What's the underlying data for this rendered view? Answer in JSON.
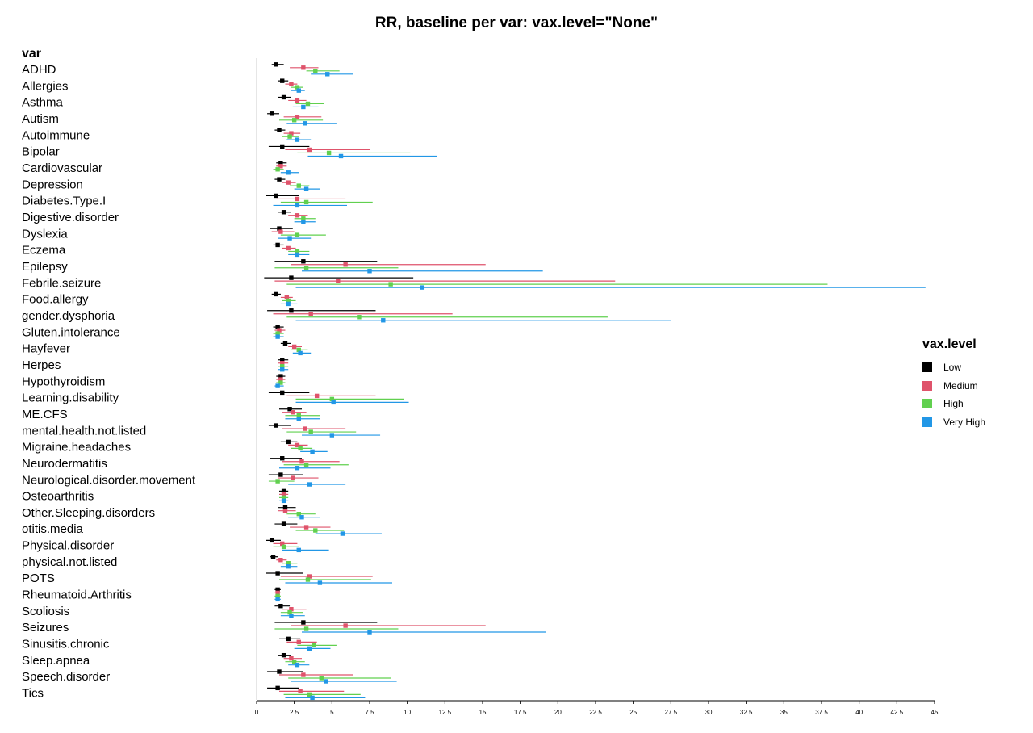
{
  "chart_data": {
    "type": "forest",
    "title": "RR, baseline per var: vax.level=\"None\"",
    "row_header": "var",
    "xlim": [
      0,
      45
    ],
    "xticks": [
      "0",
      "2.5",
      "5",
      "7.5",
      "10",
      "12.5",
      "15",
      "17.5",
      "20",
      "22.5",
      "25",
      "27.5",
      "30",
      "32.5",
      "35",
      "37.5",
      "40",
      "42.5",
      "45"
    ],
    "legend": {
      "title": "vax.level",
      "position": "right",
      "entries": [
        {
          "label": "Low",
          "color": "#000000"
        },
        {
          "label": "Medium",
          "color": "#DF536B"
        },
        {
          "label": "High",
          "color": "#61D04F"
        },
        {
          "label": "Very High",
          "color": "#2297E6"
        }
      ]
    },
    "series_order": [
      "Low",
      "Medium",
      "High",
      "Very High"
    ],
    "rows": [
      {
        "var": "ADHD",
        "Low": [
          1.3,
          1.0,
          1.8
        ],
        "Medium": [
          3.1,
          2.2,
          4.1
        ],
        "High": [
          3.9,
          3.3,
          5.5
        ],
        "Very High": [
          4.7,
          3.6,
          6.4
        ]
      },
      {
        "var": "Allergies",
        "Low": [
          1.7,
          1.4,
          2.1
        ],
        "Medium": [
          2.3,
          1.9,
          2.7
        ],
        "High": [
          2.7,
          2.3,
          3.1
        ],
        "Very High": [
          2.8,
          2.3,
          3.2
        ]
      },
      {
        "var": "Asthma",
        "Low": [
          1.8,
          1.4,
          2.3
        ],
        "Medium": [
          2.7,
          2.1,
          3.3
        ],
        "High": [
          3.4,
          2.6,
          4.5
        ],
        "Very High": [
          3.1,
          2.4,
          4.1
        ]
      },
      {
        "var": "Autism",
        "Low": [
          1.0,
          0.7,
          1.5
        ],
        "Medium": [
          2.7,
          1.8,
          4.3
        ],
        "High": [
          2.5,
          1.5,
          4.4
        ],
        "Very High": [
          3.2,
          2.0,
          5.3
        ]
      },
      {
        "var": "Autoimmune",
        "Low": [
          1.5,
          1.2,
          1.9
        ],
        "Medium": [
          2.3,
          1.8,
          2.9
        ],
        "High": [
          2.2,
          1.7,
          2.8
        ],
        "Very High": [
          2.7,
          2.0,
          3.6
        ]
      },
      {
        "var": "Bipolar",
        "Low": [
          1.7,
          0.8,
          3.5
        ],
        "Medium": [
          3.5,
          1.9,
          7.5
        ],
        "High": [
          4.8,
          2.7,
          10.2
        ],
        "Very High": [
          5.6,
          3.4,
          12.0
        ]
      },
      {
        "var": "Cardiovascular",
        "Low": [
          1.6,
          1.3,
          2.0
        ],
        "Medium": [
          1.6,
          1.3,
          2.0
        ],
        "High": [
          1.4,
          1.1,
          1.8
        ],
        "Very High": [
          2.1,
          1.6,
          2.8
        ]
      },
      {
        "var": "Depression",
        "Low": [
          1.5,
          1.2,
          1.9
        ],
        "Medium": [
          2.1,
          1.7,
          2.6
        ],
        "High": [
          2.8,
          2.2,
          3.5
        ],
        "Very High": [
          3.3,
          2.5,
          4.2
        ]
      },
      {
        "var": "Diabetes.Type.I",
        "Low": [
          1.3,
          0.6,
          2.8
        ],
        "Medium": [
          2.7,
          1.3,
          5.9
        ],
        "High": [
          3.3,
          1.6,
          7.7
        ],
        "Very High": [
          2.7,
          1.1,
          6.0
        ]
      },
      {
        "var": "Digestive.disorder",
        "Low": [
          1.8,
          1.4,
          2.3
        ],
        "Medium": [
          2.7,
          2.1,
          3.4
        ],
        "High": [
          3.1,
          2.5,
          3.9
        ],
        "Very High": [
          3.1,
          2.5,
          3.9
        ]
      },
      {
        "var": "Dyslexia",
        "Low": [
          1.5,
          0.9,
          2.4
        ],
        "Medium": [
          1.6,
          1.0,
          2.5
        ],
        "High": [
          2.7,
          1.6,
          4.6
        ],
        "Very High": [
          2.2,
          1.4,
          3.6
        ]
      },
      {
        "var": "Eczema",
        "Low": [
          1.4,
          1.1,
          1.8
        ],
        "Medium": [
          2.1,
          1.7,
          2.6
        ],
        "High": [
          2.7,
          2.1,
          3.5
        ],
        "Very High": [
          2.7,
          2.1,
          3.5
        ]
      },
      {
        "var": "Epilepsy",
        "Low": [
          3.1,
          1.2,
          8.0
        ],
        "Medium": [
          5.9,
          2.3,
          15.2
        ],
        "High": [
          3.3,
          1.2,
          9.4
        ],
        "Very High": [
          7.5,
          3.0,
          19.0
        ]
      },
      {
        "var": "Febrile.seizure",
        "Low": [
          2.3,
          0.5,
          10.4
        ],
        "Medium": [
          5.4,
          1.2,
          23.8
        ],
        "High": [
          8.9,
          2.0,
          37.9
        ],
        "Very High": [
          11.0,
          2.6,
          44.4
        ]
      },
      {
        "var": "Food.allergy",
        "Low": [
          1.3,
          1.0,
          1.6
        ],
        "Medium": [
          2.0,
          1.6,
          2.4
        ],
        "High": [
          2.1,
          1.7,
          2.6
        ],
        "Very High": [
          2.1,
          1.6,
          2.7
        ]
      },
      {
        "var": "gender.dysphoria",
        "Low": [
          2.3,
          0.7,
          7.9
        ],
        "Medium": [
          3.6,
          1.1,
          13.0
        ],
        "High": [
          6.8,
          2.0,
          23.3
        ],
        "Very High": [
          8.4,
          2.6,
          27.5
        ]
      },
      {
        "var": "Gluten.intolerance",
        "Low": [
          1.4,
          1.1,
          1.8
        ],
        "Medium": [
          1.5,
          1.2,
          1.9
        ],
        "High": [
          1.4,
          1.1,
          1.8
        ],
        "Very High": [
          1.4,
          1.1,
          1.8
        ]
      },
      {
        "var": "Hayfever",
        "Low": [
          1.9,
          1.6,
          2.3
        ],
        "Medium": [
          2.5,
          2.1,
          3.0
        ],
        "High": [
          2.8,
          2.3,
          3.4
        ],
        "Very High": [
          2.9,
          2.4,
          3.6
        ]
      },
      {
        "var": "Herpes",
        "Low": [
          1.7,
          1.4,
          2.1
        ],
        "Medium": [
          1.7,
          1.4,
          2.1
        ],
        "High": [
          1.7,
          1.4,
          2.1
        ],
        "Very High": [
          1.7,
          1.4,
          2.1
        ]
      },
      {
        "var": "Hypothyroidism",
        "Low": [
          1.6,
          1.3,
          1.9
        ],
        "Medium": [
          1.6,
          1.3,
          1.9
        ],
        "High": [
          1.6,
          1.3,
          1.9
        ],
        "Very High": [
          1.4,
          1.2,
          1.8
        ]
      },
      {
        "var": "Learning.disability",
        "Low": [
          1.7,
          0.8,
          3.5
        ],
        "Medium": [
          4.0,
          2.0,
          7.9
        ],
        "High": [
          5.0,
          2.6,
          9.8
        ],
        "Very High": [
          5.1,
          2.6,
          10.1
        ]
      },
      {
        "var": "ME.CFS",
        "Low": [
          2.2,
          1.5,
          3.0
        ],
        "Medium": [
          2.4,
          1.7,
          3.3
        ],
        "High": [
          2.8,
          1.9,
          4.2
        ],
        "Very High": [
          2.8,
          1.9,
          4.2
        ]
      },
      {
        "var": "mental.health.not.listed",
        "Low": [
          1.3,
          0.8,
          2.3
        ],
        "Medium": [
          3.2,
          1.7,
          5.9
        ],
        "High": [
          3.6,
          2.0,
          6.6
        ],
        "Very High": [
          5.0,
          3.0,
          8.2
        ]
      },
      {
        "var": "Migraine.headaches",
        "Low": [
          2.1,
          1.6,
          2.7
        ],
        "Medium": [
          2.7,
          2.1,
          3.4
        ],
        "High": [
          2.9,
          2.3,
          3.7
        ],
        "Very High": [
          3.7,
          2.9,
          4.7
        ]
      },
      {
        "var": "Neurodermatitis",
        "Low": [
          1.7,
          0.9,
          3.0
        ],
        "Medium": [
          3.0,
          1.7,
          5.5
        ],
        "High": [
          3.3,
          1.8,
          6.1
        ],
        "Very High": [
          2.7,
          1.5,
          4.9
        ]
      },
      {
        "var": "Neurological.disorder.movement",
        "Low": [
          1.6,
          0.8,
          3.1
        ],
        "Medium": [
          2.4,
          1.4,
          4.1
        ],
        "High": [
          1.4,
          0.8,
          2.5
        ],
        "Very High": [
          3.5,
          2.1,
          5.9
        ]
      },
      {
        "var": "Osteoarthritis",
        "Low": [
          1.8,
          1.5,
          2.1
        ],
        "Medium": [
          1.8,
          1.5,
          2.1
        ],
        "High": [
          1.8,
          1.5,
          2.1
        ],
        "Very High": [
          1.8,
          1.5,
          2.1
        ]
      },
      {
        "var": "Other.Sleeping.disorders",
        "Low": [
          1.9,
          1.4,
          2.6
        ],
        "Medium": [
          1.9,
          1.4,
          2.6
        ],
        "High": [
          2.8,
          2.0,
          3.9
        ],
        "Very High": [
          3.0,
          2.1,
          4.2
        ]
      },
      {
        "var": "otitis.media",
        "Low": [
          1.8,
          1.2,
          2.7
        ],
        "Medium": [
          3.3,
          2.2,
          4.9
        ],
        "High": [
          3.9,
          2.6,
          5.8
        ],
        "Very High": [
          5.7,
          3.9,
          8.3
        ]
      },
      {
        "var": "Physical.disorder",
        "Low": [
          1.0,
          0.6,
          1.6
        ],
        "Medium": [
          1.7,
          1.1,
          2.7
        ],
        "High": [
          1.8,
          1.1,
          2.8
        ],
        "Very High": [
          2.8,
          1.7,
          4.8
        ]
      },
      {
        "var": "physical.not.listed",
        "Low": [
          1.1,
          0.9,
          1.4
        ],
        "Medium": [
          1.6,
          1.3,
          2.0
        ],
        "High": [
          2.1,
          1.7,
          2.7
        ],
        "Very High": [
          2.1,
          1.6,
          2.7
        ]
      },
      {
        "var": "POTS",
        "Low": [
          1.4,
          0.6,
          3.1
        ],
        "Medium": [
          3.5,
          1.6,
          7.7
        ],
        "High": [
          3.4,
          1.5,
          7.6
        ],
        "Very High": [
          4.2,
          1.9,
          9.0
        ]
      },
      {
        "var": "Rheumatoid.Arthritis",
        "Low": [
          1.4,
          1.2,
          1.6
        ],
        "Medium": [
          1.4,
          1.2,
          1.6
        ],
        "High": [
          1.4,
          1.2,
          1.6
        ],
        "Very High": [
          1.4,
          1.2,
          1.6
        ]
      },
      {
        "var": "Scoliosis",
        "Low": [
          1.6,
          1.2,
          2.2
        ],
        "Medium": [
          2.3,
          1.7,
          3.3
        ],
        "High": [
          2.2,
          1.6,
          3.1
        ],
        "Very High": [
          2.3,
          1.6,
          3.2
        ]
      },
      {
        "var": "Seizures",
        "Low": [
          3.1,
          1.2,
          8.0
        ],
        "Medium": [
          5.9,
          2.3,
          15.2
        ],
        "High": [
          3.3,
          1.2,
          9.4
        ],
        "Very High": [
          7.5,
          3.0,
          19.2
        ]
      },
      {
        "var": "Sinusitis.chronic",
        "Low": [
          2.1,
          1.5,
          2.9
        ],
        "Medium": [
          2.8,
          2.0,
          4.0
        ],
        "High": [
          3.8,
          2.7,
          5.3
        ],
        "Very High": [
          3.5,
          2.5,
          4.9
        ]
      },
      {
        "var": "Sleep.apnea",
        "Low": [
          1.8,
          1.4,
          2.3
        ],
        "Medium": [
          2.3,
          1.8,
          3.0
        ],
        "High": [
          2.5,
          1.9,
          3.2
        ],
        "Very High": [
          2.7,
          2.1,
          3.5
        ]
      },
      {
        "var": "Speech.disorder",
        "Low": [
          1.5,
          0.7,
          3.1
        ],
        "Medium": [
          3.1,
          1.5,
          6.4
        ],
        "High": [
          4.3,
          2.1,
          8.9
        ],
        "Very High": [
          4.6,
          2.3,
          9.3
        ]
      },
      {
        "var": "Tics",
        "Low": [
          1.4,
          0.7,
          2.8
        ],
        "Medium": [
          2.9,
          1.5,
          5.8
        ],
        "High": [
          3.5,
          1.8,
          6.9
        ],
        "Very High": [
          3.7,
          1.9,
          7.2
        ]
      }
    ]
  }
}
